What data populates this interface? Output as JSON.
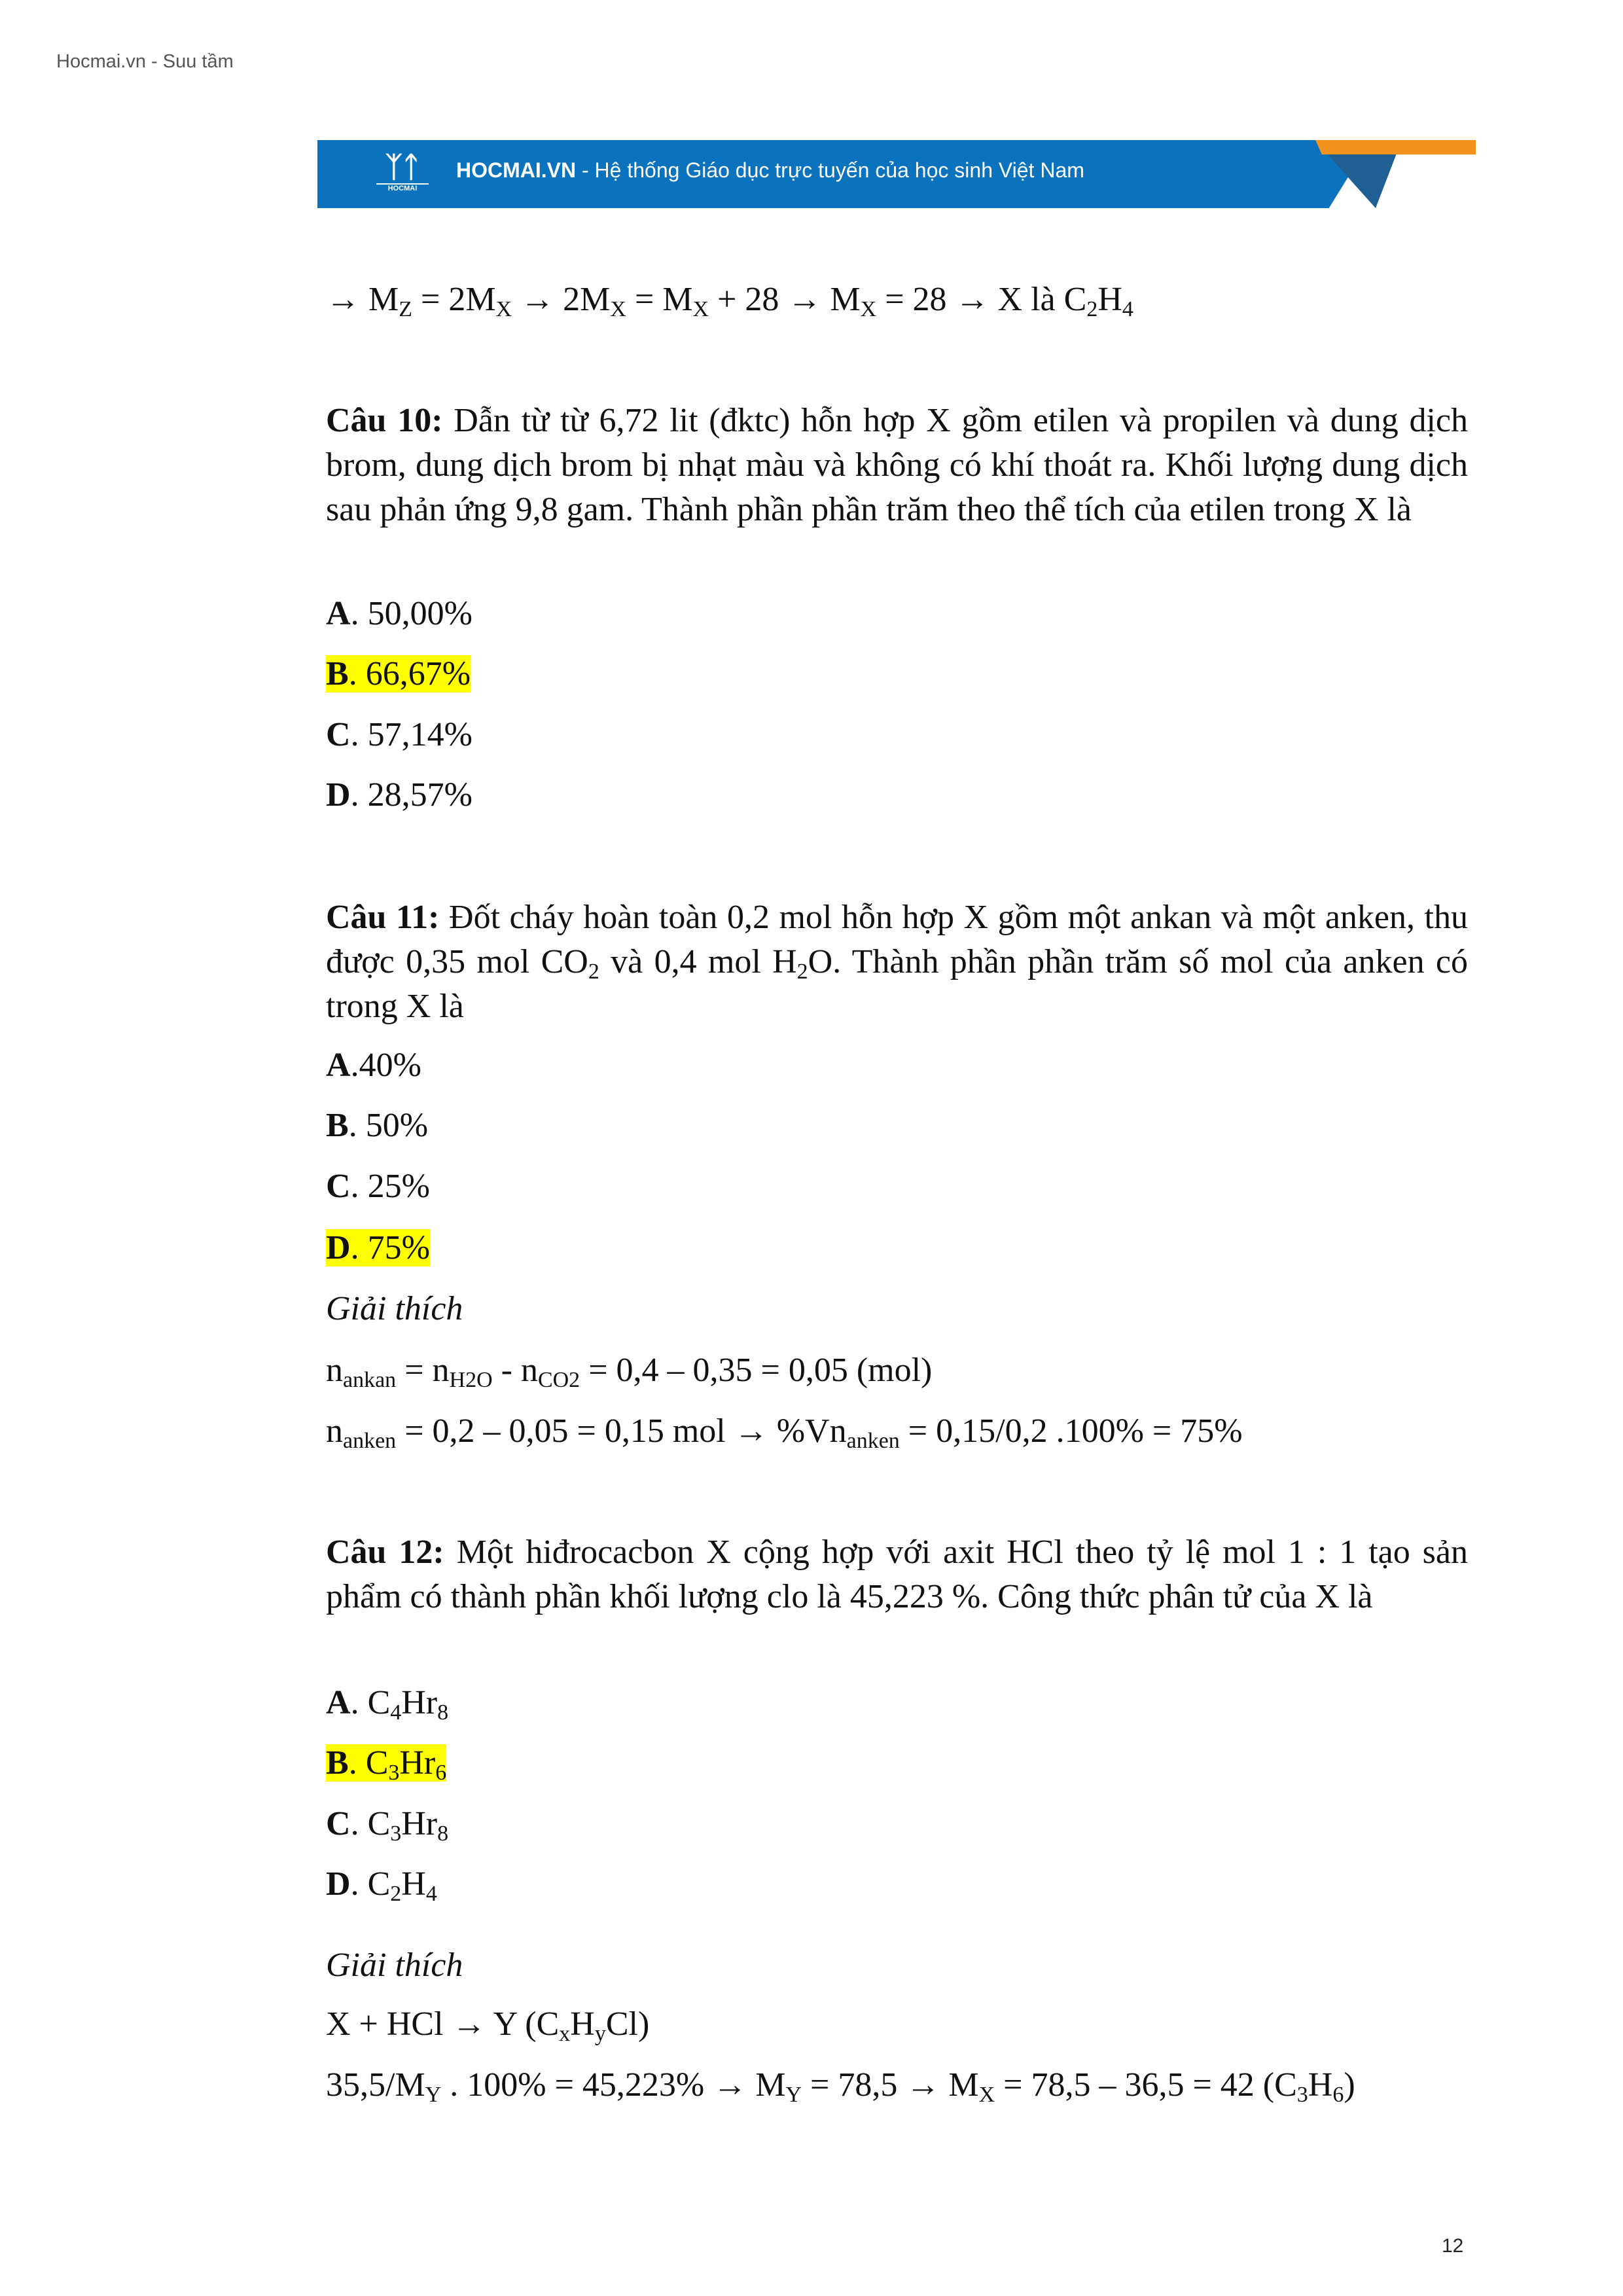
{
  "header": {
    "source_note": "Hocmai.vn - Suu tầm"
  },
  "banner": {
    "logo_caption": "HOCMAI",
    "brand": "HOCMAI.VN",
    "tagline": " - Hệ thống Giáo dục trực tuyến của học sinh Việt Nam",
    "colors": {
      "blue": "#0b72bd",
      "orange": "#f4921f",
      "highlight": "#ffff00"
    }
  },
  "lines": {
    "intro": [
      "→ M",
      {
        "sub": "Z"
      },
      " = 2M",
      {
        "sub": "X"
      },
      " → 2M",
      {
        "sub": "X"
      },
      " = M",
      {
        "sub": "X"
      },
      " + 28 → M",
      {
        "sub": "X"
      },
      " = 28 → X là C",
      {
        "sub": "2"
      },
      "H",
      {
        "sub": "4"
      }
    ],
    "q10": [
      {
        "b": "Câu 10:"
      },
      " Dẫn từ từ 6,72 lit (đktc) hỗn hợp X gồm etilen và propilen và dung dịch brom, dung dịch brom bị nhạt màu và không có khí thoát ra. Khối lượng dung dịch sau phản ứng 9,8 gam. Thành phần phần trăm theo thể tích của etilen trong X là"
    ],
    "q10a": [
      {
        "b": "A"
      },
      ". 50,00%"
    ],
    "q10b": [
      {
        "b": "B"
      },
      ". 66,67%"
    ],
    "q10c": [
      {
        "b": "C"
      },
      ". 57,14%"
    ],
    "q10d": [
      {
        "b": "D"
      },
      ". 28,57%"
    ],
    "q11": [
      {
        "b": "Câu 11:"
      },
      " Đốt cháy hoàn toàn 0,2 mol hỗn hợp X gồm một ankan và một anken, thu được 0,35 mol CO",
      {
        "sub": "2"
      },
      " và 0,4 mol H",
      {
        "sub": "2"
      },
      "O. Thành phần phần trăm số mol của anken có trong X là"
    ],
    "q11a": [
      {
        "b": "A"
      },
      ".40%"
    ],
    "q11b": [
      {
        "b": "B"
      },
      ". 50%"
    ],
    "q11c": [
      {
        "b": "C"
      },
      ". 25%"
    ],
    "q11d": [
      {
        "b": "D"
      },
      ". 75%"
    ],
    "q11_expl_title": "Giải thích",
    "q11_e1": [
      "n",
      {
        "sub": "ankan"
      },
      " = n",
      {
        "sub": "H2O"
      },
      " - n",
      {
        "sub": "CO2"
      },
      " = 0,4 – 0,35 = 0,05 (mol)"
    ],
    "q11_e2": [
      "n",
      {
        "sub": "anken"
      },
      " = 0,2 – 0,05 = 0,15 mol → %Vn",
      {
        "sub": "anken"
      },
      " = 0,15/0,2 .100% = 75%"
    ],
    "q12": [
      {
        "b": "Câu 12:"
      },
      " Một hiđrocacbon X cộng hợp với axit HCl theo tỷ lệ mol 1 : 1 tạo sản phẩm có thành phần khối lượng clo là 45,223 %. Công thức phân tử của X là"
    ],
    "q12a": [
      {
        "b": "A"
      },
      ". C",
      {
        "sub": "4"
      },
      "Hr",
      {
        "sub": "8"
      }
    ],
    "q12b": [
      {
        "b": "B"
      },
      ". C",
      {
        "sub": "3"
      },
      "Hr",
      {
        "sub": "6"
      }
    ],
    "q12c": [
      {
        "b": "C"
      },
      ". C",
      {
        "sub": "3"
      },
      "Hr",
      {
        "sub": "8"
      }
    ],
    "q12d": [
      {
        "b": "D"
      },
      ". C",
      {
        "sub": "2"
      },
      "H",
      {
        "sub": "4"
      }
    ],
    "q12_expl_title": "Giải thích",
    "q12_e1": [
      "X + HCl → Y (C",
      {
        "sub": "x"
      },
      "H",
      {
        "sub": "y"
      },
      "Cl)"
    ],
    "q12_e2": [
      "35,5/M",
      {
        "sub": "Y"
      },
      " . 100% = 45,223% → M",
      {
        "sub": "Y"
      },
      " = 78,5 → M",
      {
        "sub": "X"
      },
      " = 78,5 – 36,5 = 42 (C",
      {
        "sub": "3"
      },
      "H",
      {
        "sub": "6"
      },
      ")"
    ]
  },
  "highlighted_answers": [
    "q10b",
    "q11d",
    "q12b"
  ],
  "page_number": "12"
}
